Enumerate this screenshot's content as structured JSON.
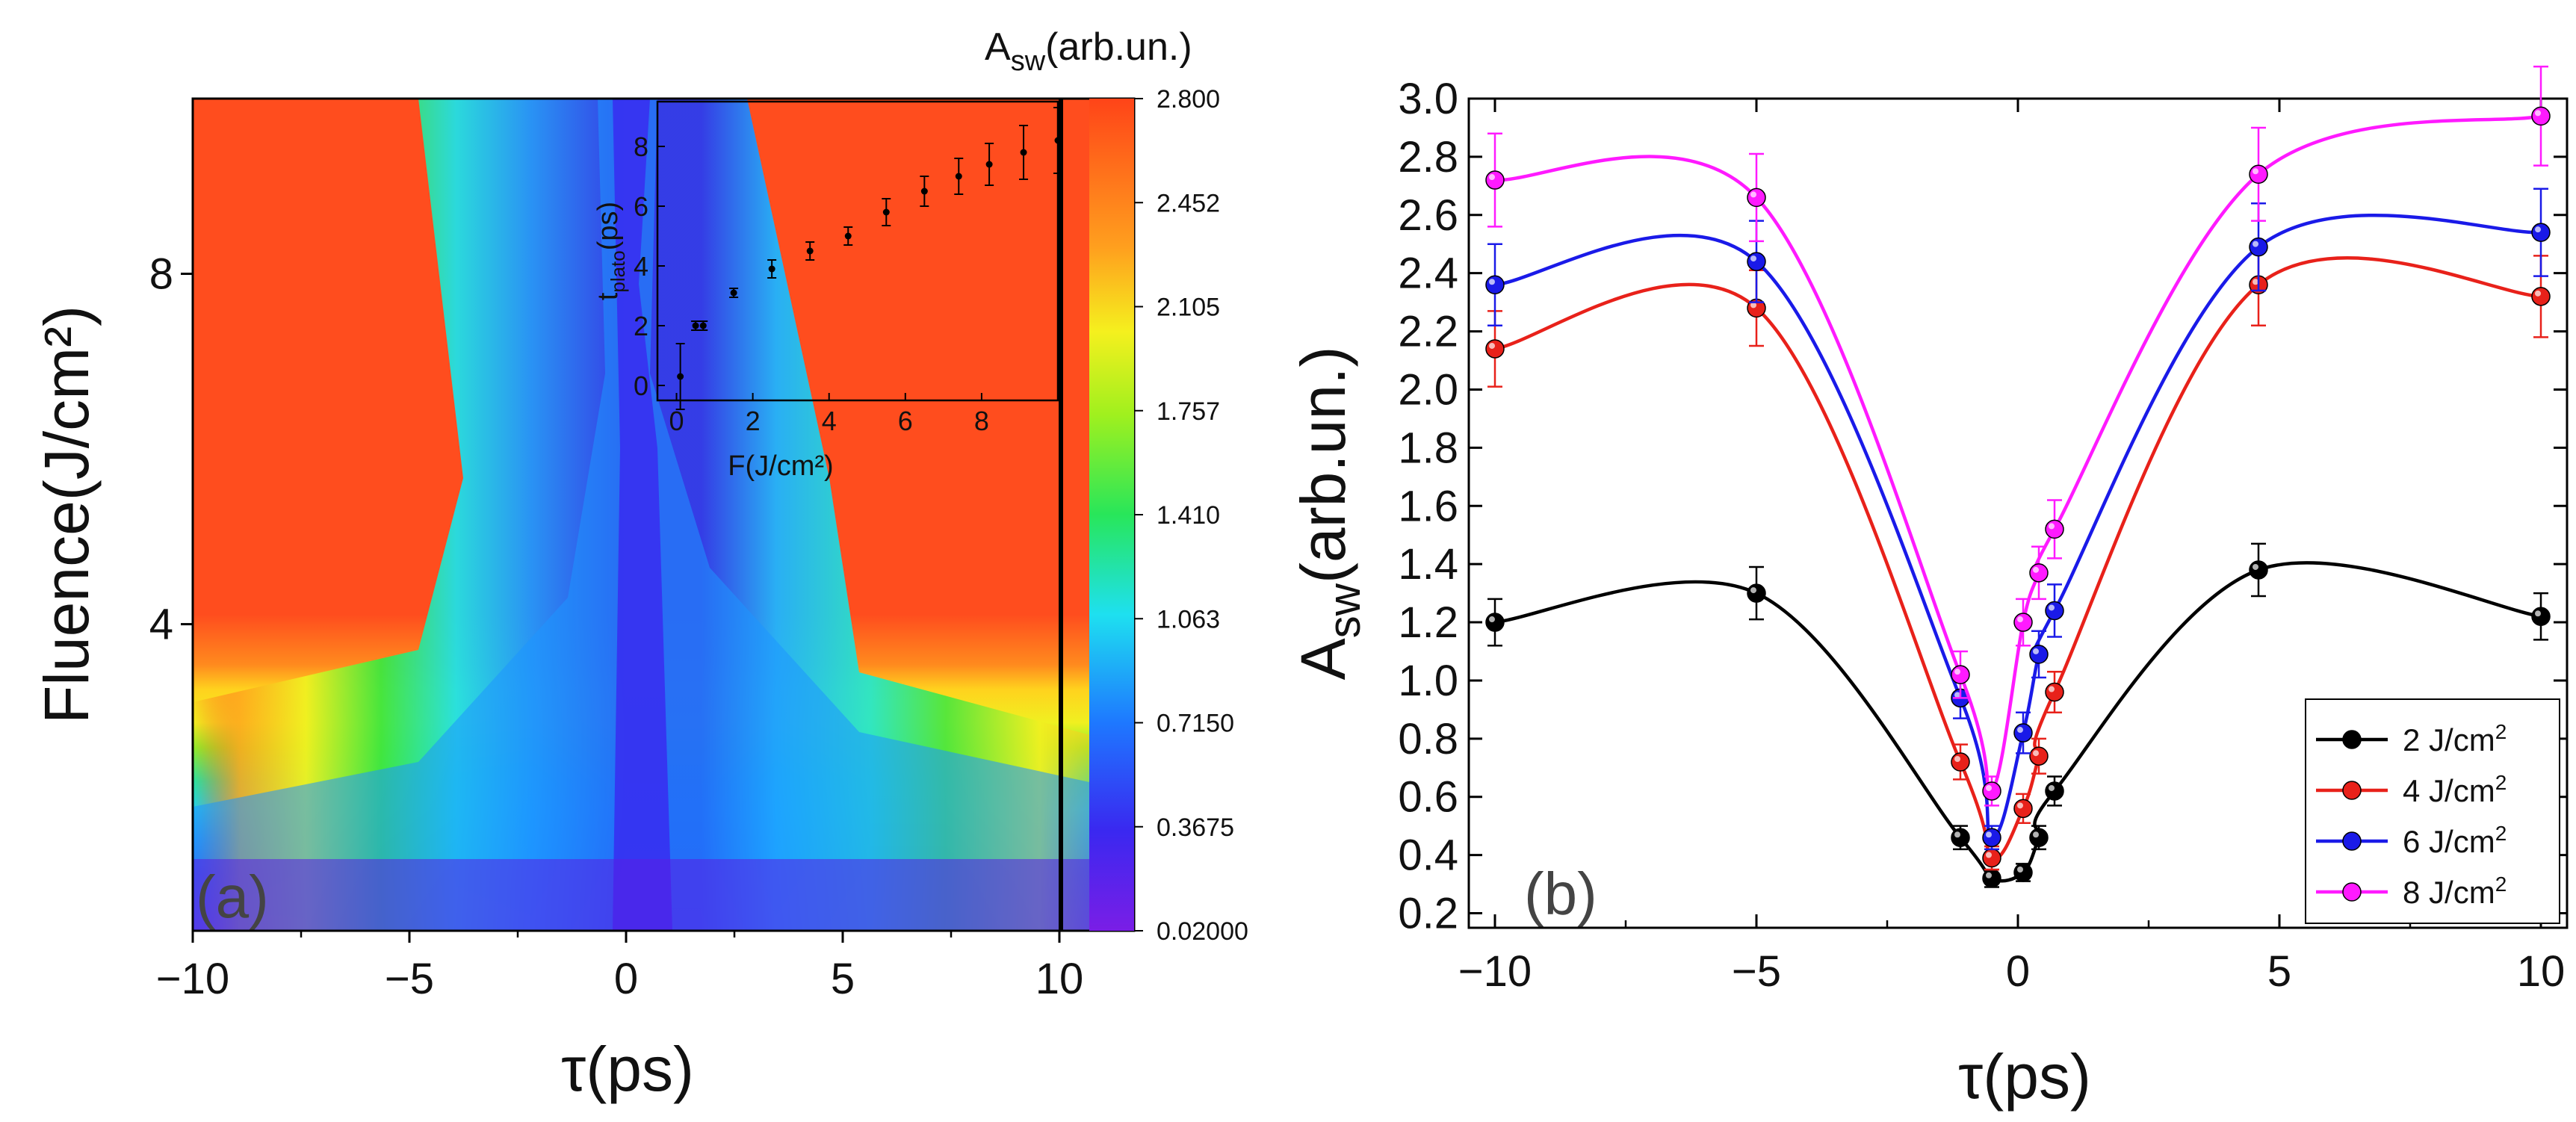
{
  "chart_data": [
    {
      "panel": "(a)",
      "type": "heatmap",
      "xlabel": "τ(ps)",
      "ylabel": "Fluence(J/cm²)",
      "xlim": [
        -10,
        10
      ],
      "ylim": [
        0.5,
        10
      ],
      "x_ticks": [
        "−10",
        "−5",
        "0",
        "5",
        "10"
      ],
      "y_ticks": [
        "4",
        "8"
      ],
      "colorbar": {
        "title": "A",
        "title_sub": "sw",
        "title_rest": "(arb.un.)",
        "ticks": [
          "2.800",
          "2.452",
          "2.105",
          "1.757",
          "1.410",
          "1.063",
          "0.7150",
          "0.3675",
          "0.02000"
        ],
        "range": [
          0.02,
          2.8
        ]
      },
      "colors": [
        "#7a1ee6",
        "#2a3cf0",
        "#1ea0ff",
        "#20e6e6",
        "#3ee63e",
        "#f0f020",
        "#ffa51e",
        "#ff4d1e"
      ],
      "inset": {
        "type": "scatter",
        "xlabel": "F(J/cm²)",
        "ylabel": "t_plato(ps)",
        "ylabel_main": "t",
        "ylabel_sub": "plato",
        "ylabel_rest": "(ps)",
        "xlim": [
          -0.5,
          10
        ],
        "ylim": [
          -0.5,
          9.5
        ],
        "x_ticks": [
          "0",
          "2",
          "4",
          "6",
          "8"
        ],
        "y_ticks": [
          "0",
          "2",
          "4",
          "6",
          "8"
        ],
        "x": [
          0.1,
          0.5,
          0.7,
          1.5,
          2.5,
          3.5,
          4.5,
          5.5,
          6.5,
          7.4,
          8.2,
          9.1,
          10.0
        ],
        "y": [
          0.3,
          2.0,
          2.0,
          3.1,
          3.9,
          4.5,
          5.0,
          5.8,
          6.5,
          7.0,
          7.4,
          7.8,
          8.2
        ],
        "err": [
          1.1,
          0.15,
          0.15,
          0.15,
          0.3,
          0.3,
          0.3,
          0.45,
          0.5,
          0.6,
          0.7,
          0.9,
          1.1
        ]
      }
    },
    {
      "panel": "(b)",
      "type": "line",
      "xlabel": "τ(ps)",
      "ylabel": "A_sw(arb.un.)",
      "ylabel_main": "A",
      "ylabel_sub": "sw",
      "ylabel_rest": "(arb.un.)",
      "xlim": [
        -10.5,
        10.5
      ],
      "ylim": [
        0.15,
        3.0
      ],
      "x_ticks": [
        "−10",
        "−5",
        "0",
        "5",
        "10"
      ],
      "y_ticks": [
        "0.2",
        "0.4",
        "0.6",
        "0.8",
        "1.0",
        "1.2",
        "1.4",
        "1.6",
        "1.8",
        "2.0",
        "2.2",
        "2.4",
        "2.6",
        "2.8",
        "3.0"
      ],
      "x": [
        -10,
        -5,
        -1.1,
        -0.9,
        -0.5,
        0.1,
        0.5,
        0.7
      ],
      "series": [
        {
          "name": "2 J/cm²",
          "color": "#000000",
          "x": [
            -10,
            -5,
            -1.1,
            -0.5,
            0.1,
            0.4,
            0.7,
            4.6,
            10
          ],
          "y": [
            1.2,
            1.3,
            0.46,
            0.32,
            0.34,
            0.46,
            0.62,
            1.38,
            1.22
          ],
          "err": [
            0.08,
            0.09,
            0.04,
            0.03,
            0.03,
            0.04,
            0.05,
            0.09,
            0.08
          ]
        },
        {
          "name": "4 J/cm²",
          "color": "#e8211a",
          "x": [
            -10,
            -5,
            -1.1,
            -0.5,
            0.1,
            0.4,
            0.7,
            4.6,
            10
          ],
          "y": [
            2.14,
            2.28,
            0.72,
            0.39,
            0.56,
            0.74,
            0.96,
            2.36,
            2.32
          ],
          "err": [
            0.13,
            0.13,
            0.06,
            0.04,
            0.05,
            0.06,
            0.07,
            0.14,
            0.14
          ]
        },
        {
          "name": "6 J/cm²",
          "color": "#1a1ae8",
          "x": [
            -10,
            -5,
            -1.1,
            -0.5,
            0.1,
            0.4,
            0.7,
            4.6,
            10
          ],
          "y": [
            2.36,
            2.44,
            0.94,
            0.46,
            0.82,
            1.09,
            1.24,
            2.49,
            2.54
          ],
          "err": [
            0.14,
            0.14,
            0.07,
            0.04,
            0.07,
            0.08,
            0.09,
            0.15,
            0.15
          ]
        },
        {
          "name": "8 J/cm²",
          "color": "#ff1aff",
          "x": [
            -10,
            -5,
            -1.1,
            -0.5,
            0.1,
            0.4,
            0.7,
            4.6,
            10
          ],
          "y": [
            2.72,
            2.66,
            1.02,
            0.62,
            1.2,
            1.37,
            1.52,
            2.74,
            2.94
          ],
          "err": [
            0.16,
            0.15,
            0.08,
            0.05,
            0.08,
            0.09,
            0.1,
            0.16,
            0.17
          ]
        }
      ],
      "legend_entries": [
        {
          "label": "2 J/cm",
          "sup": "2"
        },
        {
          "label": "4 J/cm",
          "sup": "2"
        },
        {
          "label": "6 J/cm",
          "sup": "2"
        },
        {
          "label": "8 J/cm",
          "sup": "2"
        }
      ],
      "legend_position": "bottom-right"
    }
  ]
}
